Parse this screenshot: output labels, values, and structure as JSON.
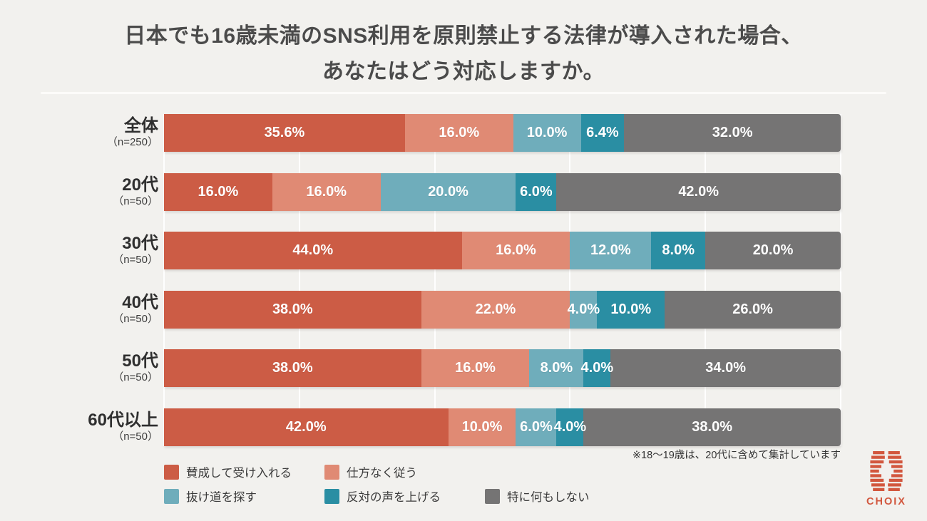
{
  "title": {
    "line1": "日本でも16歳未満のSNS利用を原則禁止する法律が導入された場合、",
    "line2": "あなたはどう対応しますか。"
  },
  "chart_data": {
    "type": "bar",
    "variant": "horizontal-stacked-100",
    "title": "日本でも16歳未満のSNS利用を原則禁止する法律が導入された場合、あなたはどう対応しますか。",
    "unit": "%",
    "xlim": [
      0,
      100
    ],
    "gridlines_percent": [
      0,
      20,
      40,
      60,
      80,
      100
    ],
    "value_label_style": "white bold inside segments, one decimal + %",
    "categories": [
      "全体",
      "20代",
      "30代",
      "40代",
      "50代",
      "60代以上"
    ],
    "category_n_labels": [
      "（n=250）",
      "（n=50）",
      "（n=50）",
      "（n=50）",
      "（n=50）",
      "（n=50）"
    ],
    "series": [
      {
        "name": "賛成して受け入れる",
        "color": "#cc5c45",
        "values": [
          35.6,
          16.0,
          44.0,
          38.0,
          38.0,
          42.0
        ]
      },
      {
        "name": "仕方なく従う",
        "color": "#e08a74",
        "values": [
          16.0,
          16.0,
          16.0,
          22.0,
          16.0,
          10.0
        ]
      },
      {
        "name": "抜け道を探す",
        "color": "#6fadbb",
        "values": [
          10.0,
          20.0,
          12.0,
          4.0,
          8.0,
          6.0
        ]
      },
      {
        "name": "反対の声を上げる",
        "color": "#2a8ea3",
        "values": [
          6.4,
          6.0,
          8.0,
          10.0,
          4.0,
          4.0
        ]
      },
      {
        "name": "特に何もしない",
        "color": "#757474",
        "values": [
          32.0,
          42.0,
          20.0,
          26.0,
          34.0,
          38.0
        ]
      }
    ],
    "legend_position": "bottom-left, two rows"
  },
  "note": "※18〜19歳は、20代に含めて集計しています",
  "logo": {
    "text": "CHOIX",
    "color": "#d2573e"
  },
  "colors": {
    "background": "#f2f1ee",
    "title_text": "#4b4b4b",
    "category_text": "#2f2f2f",
    "note_text": "#333333",
    "gridline": "#ffffff"
  }
}
